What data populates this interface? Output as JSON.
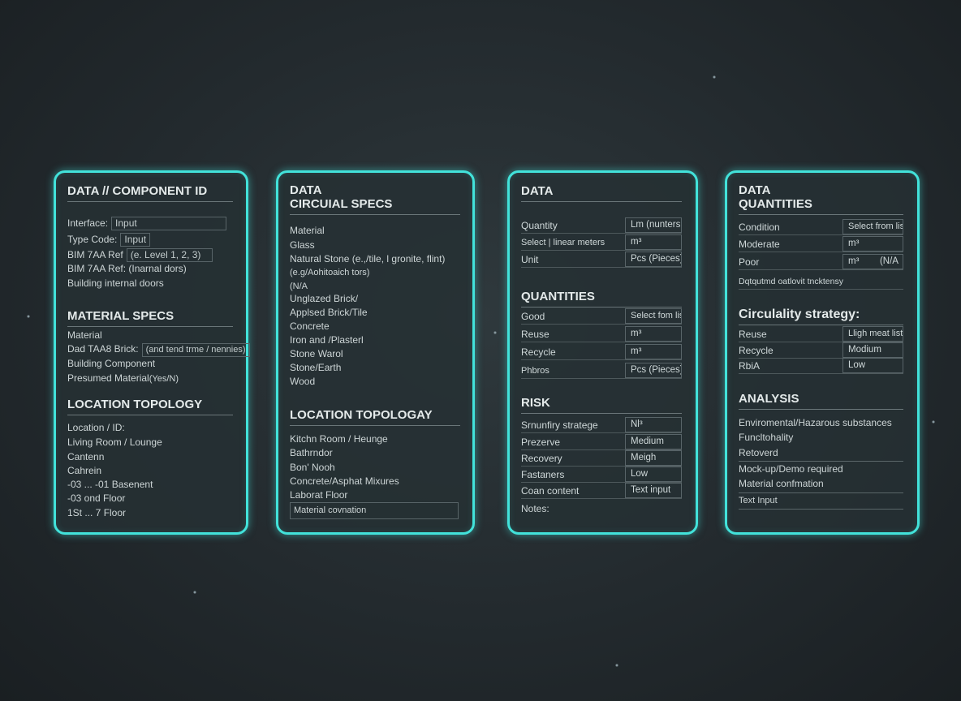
{
  "panel1": {
    "heading1": "DATA // COMPONENT ID",
    "interface_label": "Interface:",
    "interface_value": "Input",
    "type_code_label": "Type Code:",
    "type_code_value": "Input",
    "bim_label": "BIM 7AA Ref",
    "bim_value": "(e. Level 1, 2, 3)",
    "bim_ref2": "BIM 7AA Ref: (Inarnal dors)",
    "building_doors": "Building internal doors",
    "heading2": "MATERIAL SPECS",
    "material": "Material",
    "dad_label": "Dad TAA8 Brick:",
    "dad_value": "(and tend trme / nennies)",
    "building_component": "Building Component",
    "presumed_label": "Presumed Material",
    "presumed_value": "(Yes/N)",
    "heading3": "LOCATION TOPOLOGY",
    "locations": [
      "Location / ID:",
      "Living Room / Lounge",
      "Cantenn",
      "Cahrein",
      "-03  ...  -01 Basenent",
      "-03 ond Floor",
      "1St  ... 7 Floor"
    ]
  },
  "panel2": {
    "heading1_line1": "DATA",
    "heading1_line2": "CIRCUIAL SPECS",
    "materials": [
      "Material",
      "Glass",
      "Natural Stone (e.,/tile, l gronite, flint)",
      "(e.g/Aohitoaich tors)",
      "(N/A",
      "Unglazed Brick/",
      "Applsed Brick/Tile",
      "Concrete",
      "Iron and /Plasterl",
      "Stone Warol",
      "Stone/Earth",
      "Wood"
    ],
    "heading2": "LOCATION TOPOLOGAY",
    "locations": [
      "Kitchn Room / Heunge",
      "Bathrndor",
      "Bon' Nooh",
      "Concrete/Asphat Mixures",
      "Laborat Floor"
    ],
    "input_value": "Material covnation"
  },
  "panel3": {
    "heading1": "DATA",
    "data_rows": [
      {
        "label": "Quantity",
        "value": "Lm (nunters"
      },
      {
        "label": "Select | linear meters",
        "value": "m³"
      },
      {
        "label": "Unit",
        "value": "Pcs (Pieces)"
      }
    ],
    "heading2": "QUANTITIES",
    "quantity_rows": [
      {
        "label": "Good",
        "value": "Select fom list"
      },
      {
        "label": "Reuse",
        "value": "m³"
      },
      {
        "label": "Recycle",
        "value": "m³"
      },
      {
        "label": "Phbros",
        "value": "Pcs (Pieces)"
      }
    ],
    "heading3": "RISK",
    "risk_rows": [
      {
        "label": "Srnunfiry stratege",
        "value": "Nl³"
      },
      {
        "label": "Prezerve",
        "value": "Medium"
      },
      {
        "label": "Recovery",
        "value": "Meigh"
      },
      {
        "label": "Fastaners",
        "value": "Low"
      },
      {
        "label": "Coan content",
        "value": "Text input"
      }
    ],
    "notes_label": "Notes:"
  },
  "panel4": {
    "heading1_line1": "DATA",
    "heading1_line2": "QUANTITIES",
    "condition_rows": [
      {
        "label": "Condition",
        "value": "Select from list"
      },
      {
        "label": "Moderate",
        "value": "m³"
      },
      {
        "label": "Poor",
        "value": "m³        (N/A"
      }
    ],
    "condition_note": "Dqtqutmd oatlovit tncktensy",
    "heading2": "Circulality strategy:",
    "strategy_rows": [
      {
        "label": "Reuse",
        "value": "Lligh meat list"
      },
      {
        "label": "Recycle",
        "value": "Modium"
      },
      {
        "label": "RbiA",
        "value": "Low"
      }
    ],
    "heading3": "ANALYSIS",
    "analysis_items": [
      "Enviromental/Hazarous substances",
      "Funcltohality",
      "Retoverd",
      "Mock-up/Demo required",
      "Material confmation"
    ],
    "text_input": "Text Input"
  },
  "colors": {
    "accent": "#42e2da",
    "background": "#232a2e",
    "panel": "#263034"
  }
}
